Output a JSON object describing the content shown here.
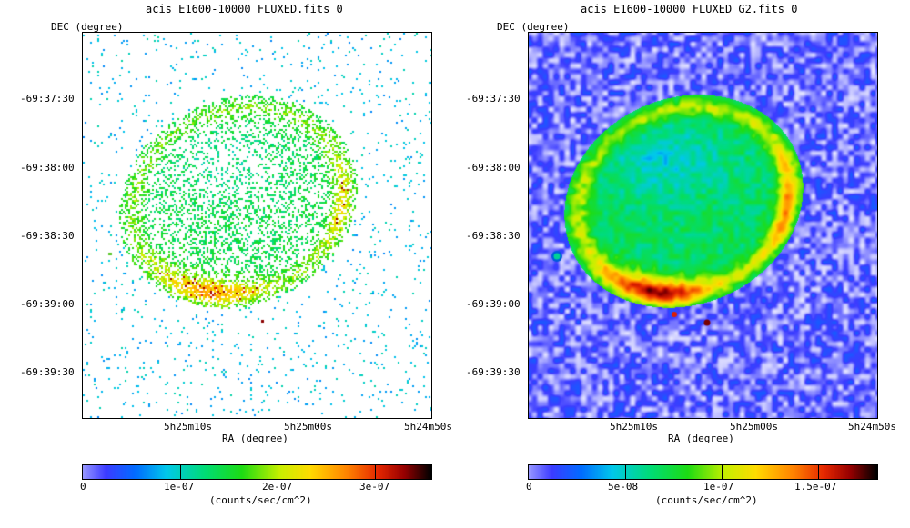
{
  "panels": [
    {
      "title": "acis_E1600-10000_FLUXED.fits_0",
      "y_axis_label": "DEC (degree)",
      "x_axis_label": "RA (degree)",
      "y_ticks": [
        "-69:37:30",
        "-69:38:00",
        "-69:38:30",
        "-69:39:00",
        "-69:39:30"
      ],
      "x_ticks": [
        "5h25m10s",
        "5h25m00s",
        "5h24m50s"
      ],
      "render": "sparse-counts",
      "colorbar": {
        "ticks": [
          "0",
          "1e-07",
          "2e-07",
          "3e-07"
        ],
        "tick_values": [
          0,
          1e-07,
          2e-07,
          3e-07
        ],
        "range": [
          0,
          3.6e-07
        ],
        "label": "(counts/sec/cm^2)"
      }
    },
    {
      "title": "acis_E1600-10000_FLUXED_G2.fits_0",
      "y_axis_label": "DEC (degree)",
      "x_axis_label": "RA (degree)",
      "y_ticks": [
        "-69:37:30",
        "-69:38:00",
        "-69:38:30",
        "-69:39:00",
        "-69:39:30"
      ],
      "x_ticks": [
        "5h25m10s",
        "5h25m00s",
        "5h24m50s"
      ],
      "render": "smoothed",
      "colorbar": {
        "ticks": [
          "0",
          "5e-08",
          "1e-07",
          "1.5e-07"
        ],
        "tick_values": [
          0,
          5e-08,
          1e-07,
          1.5e-07
        ],
        "range": [
          0,
          1.8e-07
        ],
        "label": "(counts/sec/cm^2)"
      }
    }
  ],
  "chart_data": [
    {
      "type": "heatmap",
      "title": "acis_E1600-10000_FLUXED.fits_0",
      "xlabel": "RA (degree)",
      "ylabel": "DEC (degree)",
      "x_tick_labels": [
        "5h25m10s",
        "5h25m00s",
        "5h24m50s"
      ],
      "y_tick_labels": [
        "-69:37:30",
        "-69:38:00",
        "-69:38:30",
        "-69:39:00",
        "-69:39:30"
      ],
      "colorbar_label": "(counts/sec/cm^2)",
      "colorbar_ticks": [
        0,
        1e-07,
        2e-07,
        3e-07
      ],
      "value_range": [
        0,
        3.6e-07
      ]
    },
    {
      "type": "heatmap",
      "title": "acis_E1600-10000_FLUXED_G2.fits_0",
      "xlabel": "RA (degree)",
      "ylabel": "DEC (degree)",
      "x_tick_labels": [
        "5h25m10s",
        "5h25m00s",
        "5h24m50s"
      ],
      "y_tick_labels": [
        "-69:37:30",
        "-69:38:00",
        "-69:38:30",
        "-69:39:00",
        "-69:39:30"
      ],
      "colorbar_label": "(counts/sec/cm^2)",
      "colorbar_ticks": [
        0,
        5e-08,
        1e-07,
        1.5e-07
      ],
      "value_range": [
        0,
        1.8e-07
      ]
    }
  ]
}
